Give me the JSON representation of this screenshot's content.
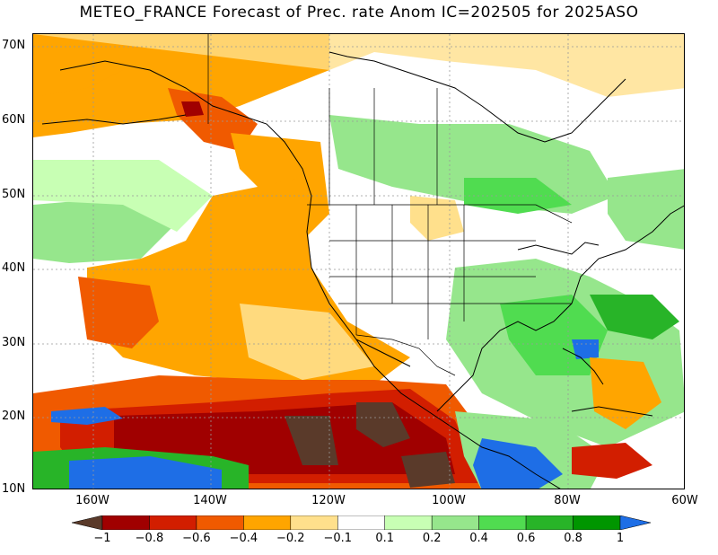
{
  "title": "METEO_FRANCE Forecast of Prec. rate Anom IC=202505 for 2025ASO",
  "axes": {
    "lat_labels": [
      "70N",
      "60N",
      "50N",
      "40N",
      "30N",
      "20N",
      "10N"
    ],
    "lon_labels": [
      "160W",
      "140W",
      "120W",
      "100W",
      "80W",
      "60W"
    ]
  },
  "colorbar": {
    "labels": [
      "−1",
      "−0.8",
      "−0.6",
      "−0.4",
      "−0.2",
      "−0.1",
      "0.1",
      "0.2",
      "0.4",
      "0.6",
      "0.8",
      "1"
    ],
    "colors": [
      "#5a3a2a",
      "#a00000",
      "#d21e00",
      "#f05a00",
      "#ffa500",
      "#ffe08c",
      "#ffffff",
      "#c8ffb4",
      "#96e68c",
      "#50dc50",
      "#28b428",
      "#009600",
      "#1e6ee6"
    ]
  },
  "map_colors": {
    "neg_strong": "#5a3a2a",
    "neg_dark_red": "#a00000",
    "neg_red": "#d21e00",
    "neg_orange_red": "#f05a00",
    "neg_orange": "#ffa500",
    "neg_light": "#ffe08c",
    "pos_light": "#c8ffb4",
    "pos_mid": "#96e68c",
    "pos_green": "#50dc50",
    "pos_dark": "#28b428",
    "pos_strong": "#009600",
    "pos_blue": "#1e6ee6"
  }
}
